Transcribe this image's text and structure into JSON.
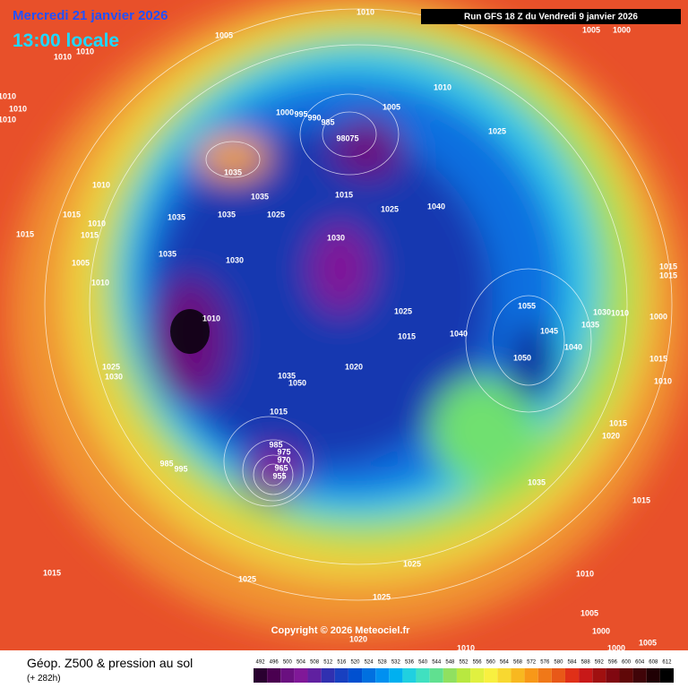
{
  "header": {
    "date": "Mercredi 21 janvier 2026",
    "time": "13:00 locale",
    "run": "Run GFS 18 Z du Vendredi 9 janvier 2026"
  },
  "copyright": "Copyright © 2026 Meteociel.fr",
  "footer": {
    "title": "Géop. Z500 & pression au sol",
    "lead": "(+ 282h)"
  },
  "legend": {
    "values": [
      492,
      496,
      500,
      504,
      508,
      512,
      516,
      520,
      524,
      528,
      532,
      536,
      540,
      544,
      548,
      552,
      556,
      560,
      564,
      568,
      572,
      576,
      580,
      584,
      588,
      592,
      596,
      600,
      604,
      608,
      612
    ],
    "colors": [
      "#2a0030",
      "#4a0050",
      "#6a1080",
      "#801898",
      "#6020a0",
      "#3030b0",
      "#1840c0",
      "#0050d0",
      "#0070e0",
      "#0090f0",
      "#00b0f0",
      "#20d0e0",
      "#40e0c0",
      "#60e090",
      "#90e060",
      "#b8e840",
      "#e0f040",
      "#f8f040",
      "#f8d830",
      "#f8b820",
      "#f89818",
      "#f07818",
      "#e85818",
      "#e03018",
      "#c81818",
      "#a01010",
      "#800810",
      "#600808",
      "#400408",
      "#200004",
      "#000000"
    ]
  },
  "pressure_labels": [
    "1010",
    "1005",
    "1010",
    "1010",
    "1010",
    "1010",
    "1010",
    "1035",
    "1035",
    "1035",
    "1035",
    "1025",
    "1010",
    "1015",
    "1010",
    "1015",
    "1015",
    "1005",
    "1010",
    "1035",
    "1030",
    "1030",
    "1025",
    "1040",
    "1015",
    "1005",
    "1010",
    "1025",
    "1000",
    "995",
    "990",
    "985",
    "98075",
    "1010",
    "1025",
    "1030",
    "1025",
    "1015",
    "1040",
    "1020",
    "1055",
    "1045",
    "1050",
    "1040",
    "1035",
    "1030",
    "1010",
    "1000",
    "1015",
    "1015",
    "1015",
    "1010",
    "1015",
    "1020",
    "1035",
    "1015",
    "1005",
    "1000",
    "1035",
    "1050",
    "1015",
    "985",
    "975",
    "970",
    "965",
    "955",
    "995",
    "985",
    "1015",
    "1025",
    "1025",
    "1010",
    "1025",
    "1005",
    "1000",
    "1005",
    "1000",
    "1020",
    "1010"
  ]
}
